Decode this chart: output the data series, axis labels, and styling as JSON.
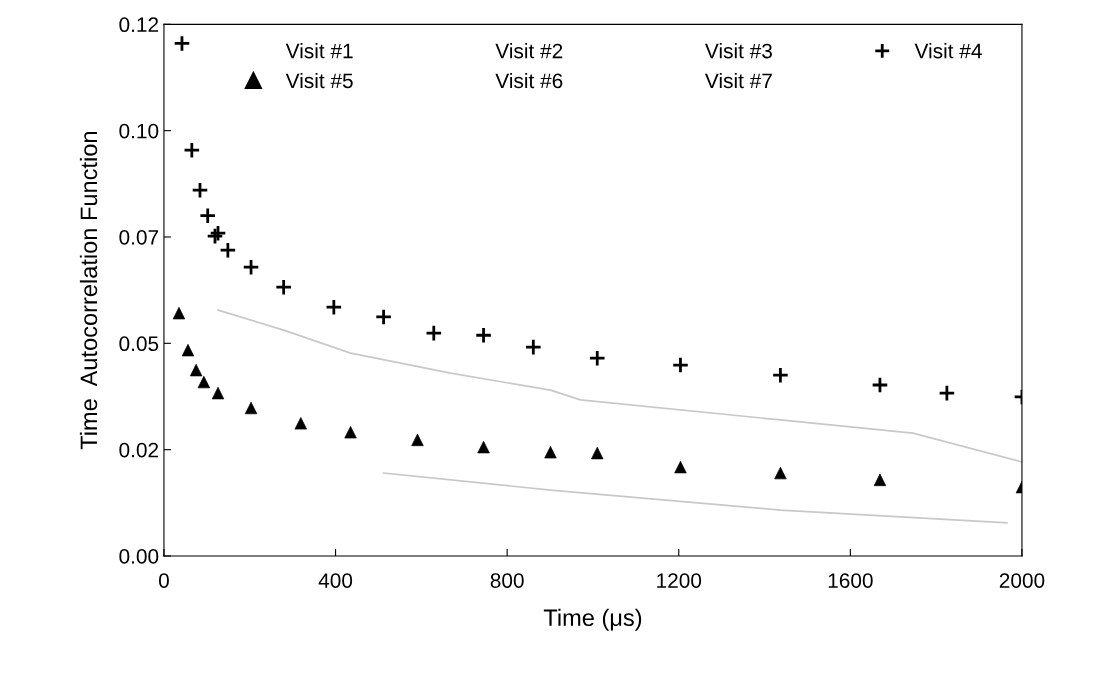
{
  "chart_data": {
    "type": "scatter",
    "xlabel": "Time (μs)",
    "ylabel": "Time  Autocorrelation Function",
    "xlim": [
      0,
      2000
    ],
    "xticks": [
      0,
      400,
      800,
      1200,
      1600,
      2000
    ],
    "ylim": [
      0,
      0.125
    ],
    "yticks": [
      {
        "value": 0,
        "label": "0.00"
      },
      {
        "value": 0.025,
        "label": "0.02"
      },
      {
        "value": 0.05,
        "label": "0.05"
      },
      {
        "value": 0.075,
        "label": "0.07"
      },
      {
        "value": 0.1,
        "label": "0.10"
      },
      {
        "value": 0.125,
        "label": "0.12"
      }
    ],
    "grid": false,
    "legend": "top",
    "annotations": [
      "Visit #1",
      "Visit #2",
      "Visit #3",
      "Visit #6",
      "Visit #7"
    ],
    "series": [
      {
        "name": "Visit #4",
        "color": "#000000",
        "marker": "cross",
        "x": [
          42,
          65,
          84,
          102,
          119,
          126,
          149,
          203,
          279,
          396,
          512,
          629,
          745,
          861,
          1010,
          1204,
          1437,
          1669,
          1825,
          2000
        ],
        "values": [
          0.1205,
          0.0954,
          0.086,
          0.08,
          0.0752,
          0.0759,
          0.0719,
          0.0679,
          0.0632,
          0.0585,
          0.0562,
          0.0524,
          0.0519,
          0.0491,
          0.0465,
          0.0449,
          0.0425,
          0.0402,
          0.0383,
          0.0374
        ]
      },
      {
        "name": "Visit #5",
        "color": "#000000",
        "marker": "triangle",
        "x": [
          35,
          56,
          75,
          93,
          126,
          203,
          319,
          435,
          591,
          745,
          901,
          1010,
          1204,
          1437,
          1669,
          2000
        ],
        "values": [
          0.0571,
          0.0484,
          0.0437,
          0.0409,
          0.0383,
          0.0348,
          0.0312,
          0.0291,
          0.0273,
          0.0256,
          0.0244,
          0.0242,
          0.0209,
          0.0195,
          0.0179,
          0.0162
        ]
      },
      {
        "type": "line",
        "color": "#c8c8c8",
        "marker": "none",
        "x": [
          126,
          279,
          435,
          668,
          901,
          971,
          1437,
          1746,
          2000
        ],
        "values": [
          0.0578,
          0.0531,
          0.0477,
          0.043,
          0.039,
          0.0367,
          0.032,
          0.0289,
          0.0221
        ]
      },
      {
        "type": "line",
        "color": "#c8c8c8",
        "marker": "none",
        "x": [
          512,
          901,
          1437,
          1965
        ],
        "values": [
          0.0195,
          0.0155,
          0.0108,
          0.0078
        ]
      }
    ]
  }
}
